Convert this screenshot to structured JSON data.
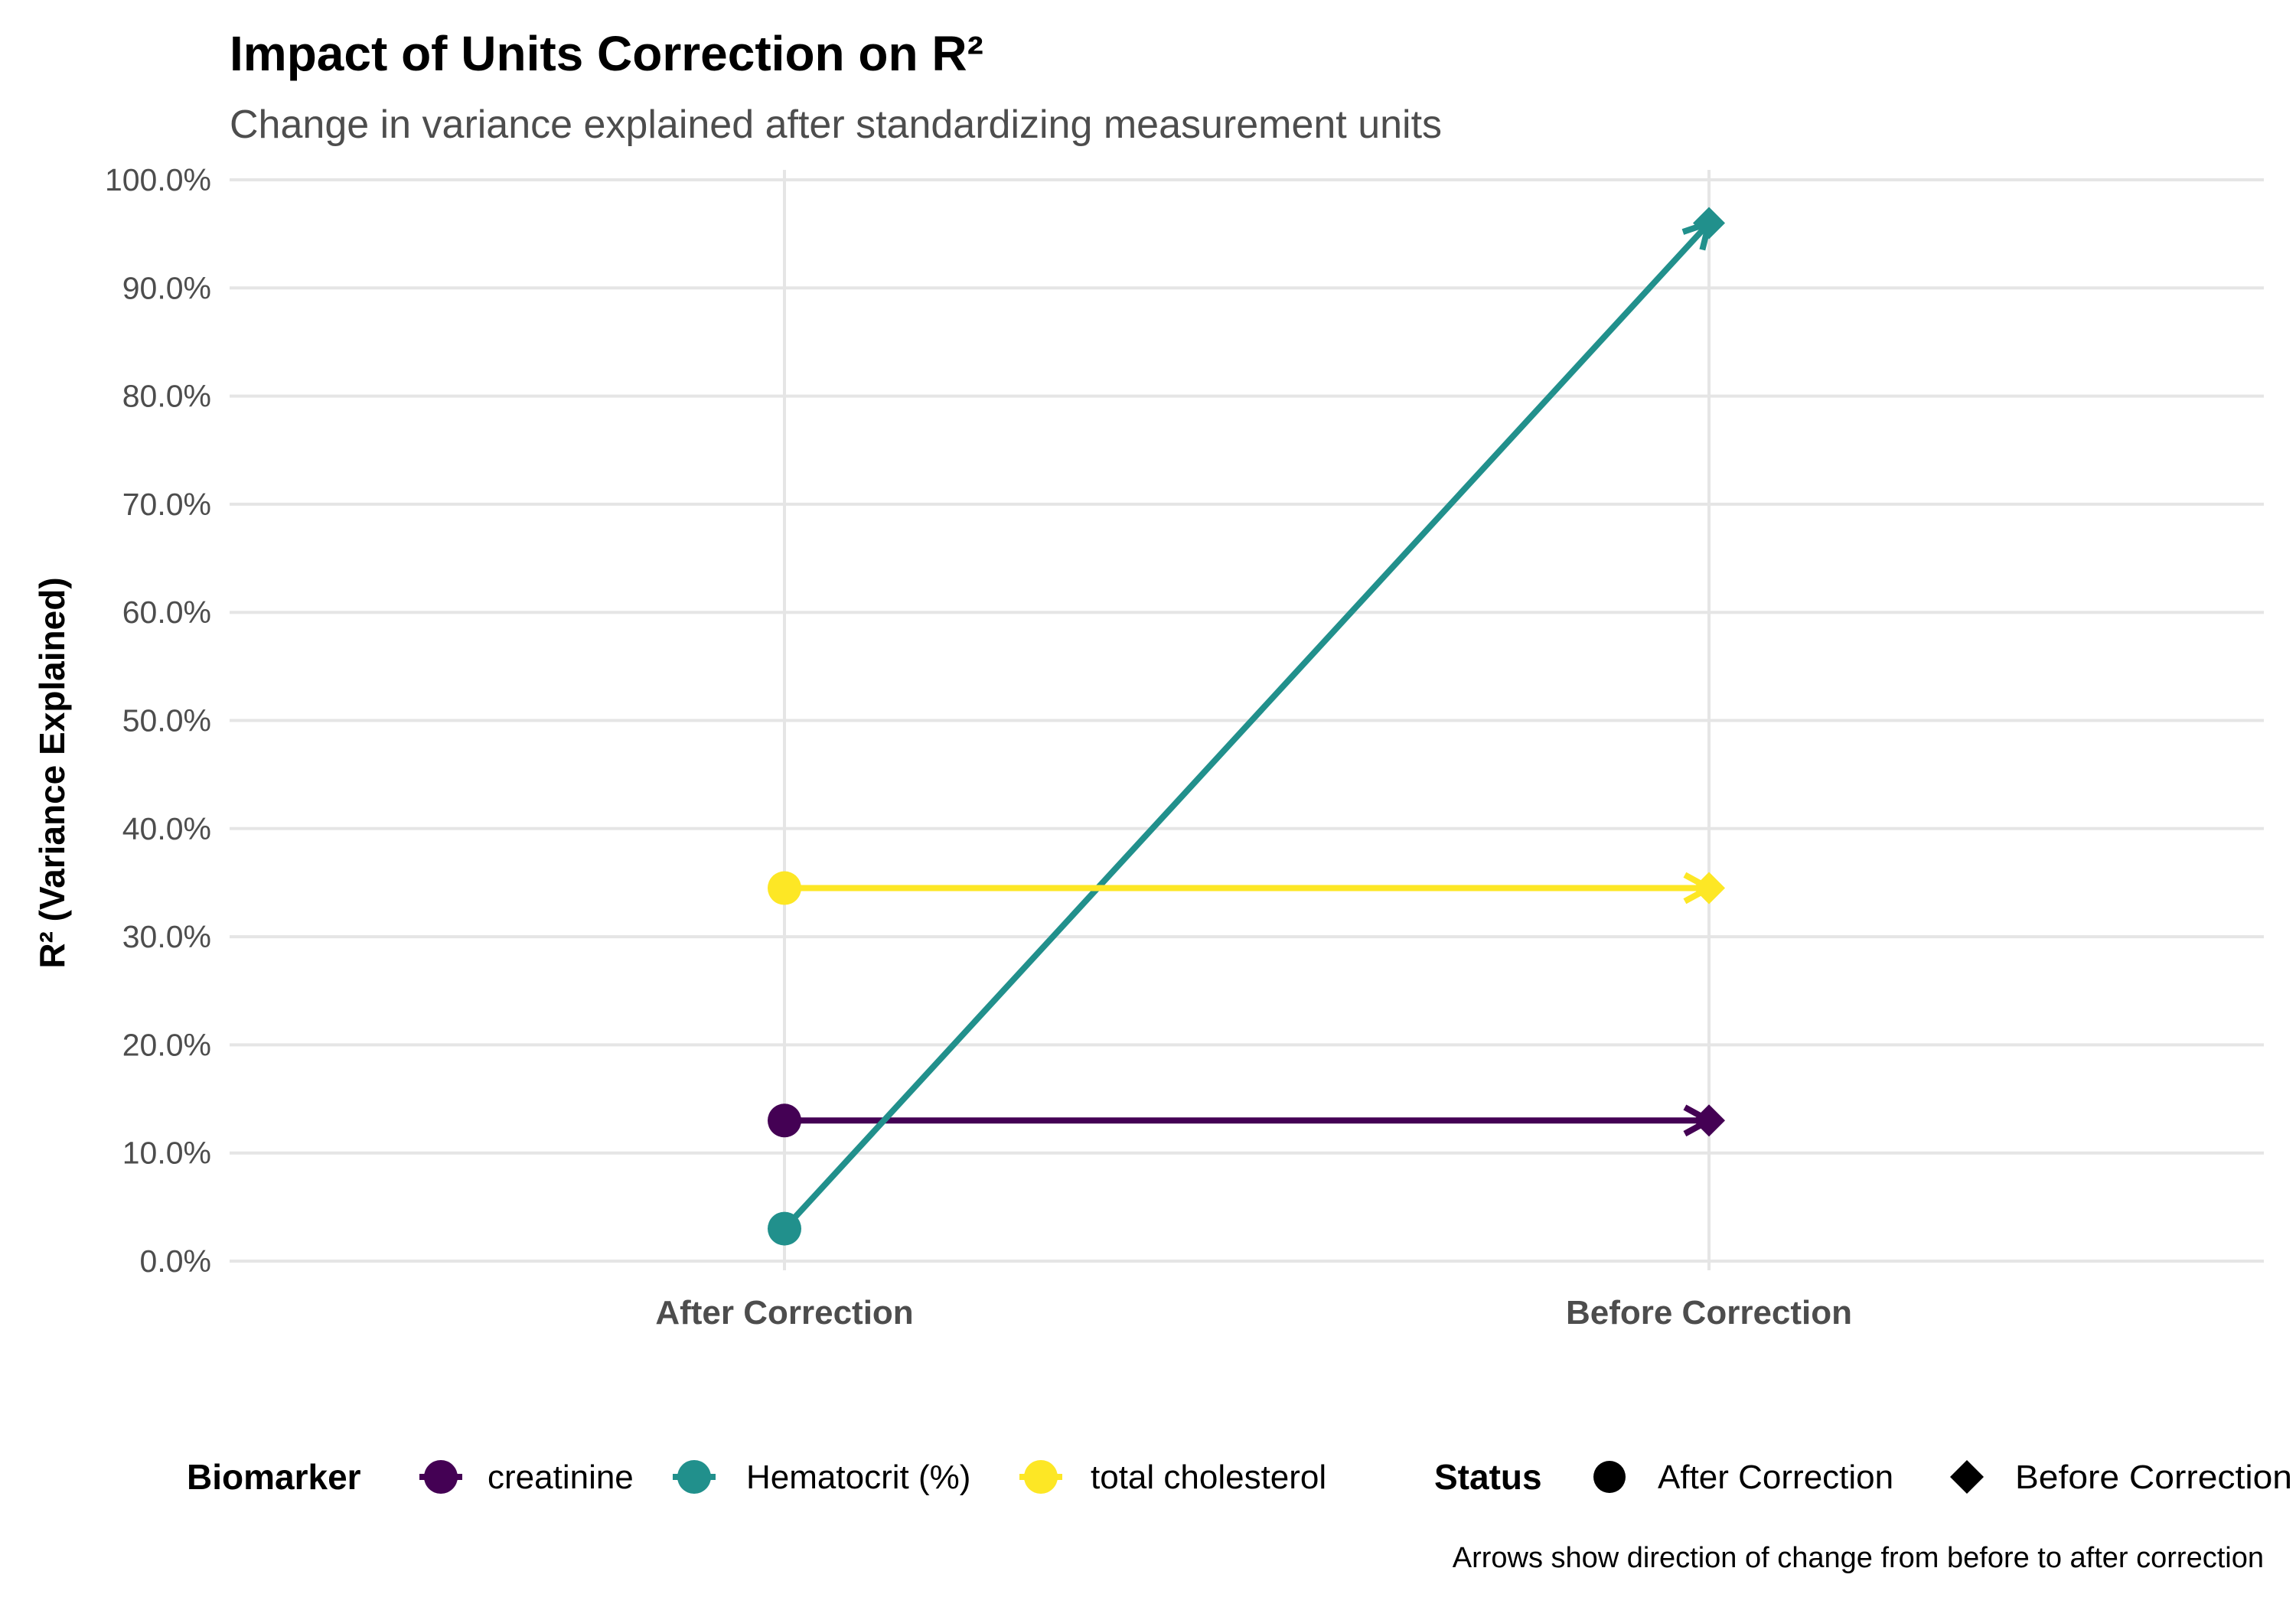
{
  "chart_data": {
    "type": "line",
    "title": "Impact of Units Correction on R²",
    "subtitle": "Change in variance explained after standardizing measurement units",
    "xlabel": "",
    "ylabel": "R² (Variance Explained)",
    "categories": [
      "After Correction",
      "Before Correction"
    ],
    "ylim": [
      0,
      100
    ],
    "yticks": [
      "0.0%",
      "10.0%",
      "20.0%",
      "30.0%",
      "40.0%",
      "50.0%",
      "60.0%",
      "70.0%",
      "80.0%",
      "90.0%",
      "100.0%"
    ],
    "grid": true,
    "series": [
      {
        "name": "creatinine",
        "color": "#440154",
        "values": [
          13.0,
          13.0
        ]
      },
      {
        "name": "Hematocrit (%)",
        "color": "#21908C",
        "values": [
          3.0,
          96.0
        ]
      },
      {
        "name": "total cholesterol",
        "color": "#FDE725",
        "values": [
          34.5,
          34.5
        ]
      }
    ],
    "legend": {
      "placement": "bottom",
      "biomarker_title": "Biomarker",
      "status_title": "Status",
      "status_items": [
        "After Correction",
        "Before Correction"
      ]
    },
    "caption": "Arrows show direction of change from before to after correction"
  }
}
